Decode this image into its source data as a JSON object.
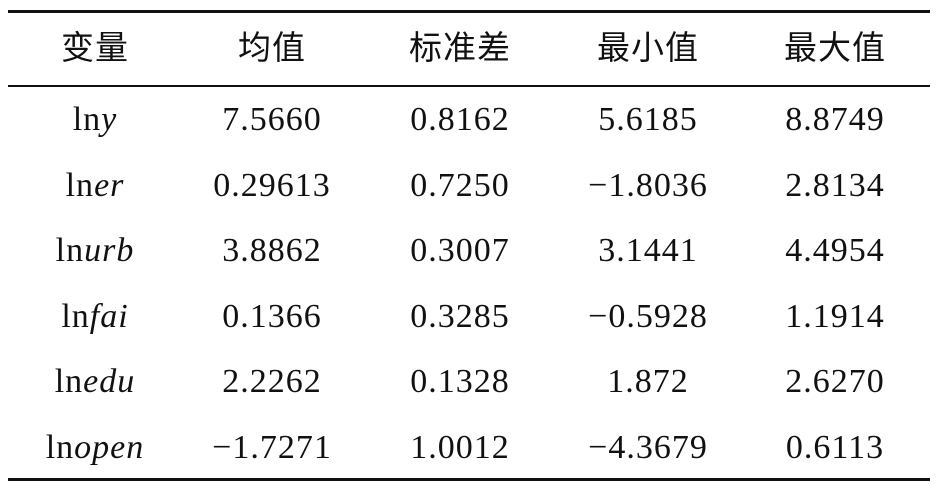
{
  "table": {
    "header": [
      "变量",
      "均值",
      "标准差",
      "最小值",
      "最大值"
    ],
    "rows": [
      {
        "fn": "ln",
        "var": "y",
        "cells": [
          "7.5660",
          "0.8162",
          "5.6185",
          "8.8749"
        ]
      },
      {
        "fn": "ln",
        "var": "er",
        "cells": [
          "0.29613",
          "0.7250",
          "−1.8036",
          "2.8134"
        ]
      },
      {
        "fn": "ln",
        "var": "urb",
        "cells": [
          "3.8862",
          "0.3007",
          "3.1441",
          "4.4954"
        ]
      },
      {
        "fn": "ln",
        "var": "fai",
        "cells": [
          "0.1366",
          "0.3285",
          "−0.5928",
          "1.1914"
        ]
      },
      {
        "fn": "ln",
        "var": "edu",
        "cells": [
          "2.2262",
          "0.1328",
          "1.872",
          "2.6270"
        ]
      },
      {
        "fn": "ln",
        "var": "open",
        "cells": [
          "−1.7271",
          "1.0012",
          "−4.3679",
          "0.6113"
        ]
      }
    ]
  }
}
